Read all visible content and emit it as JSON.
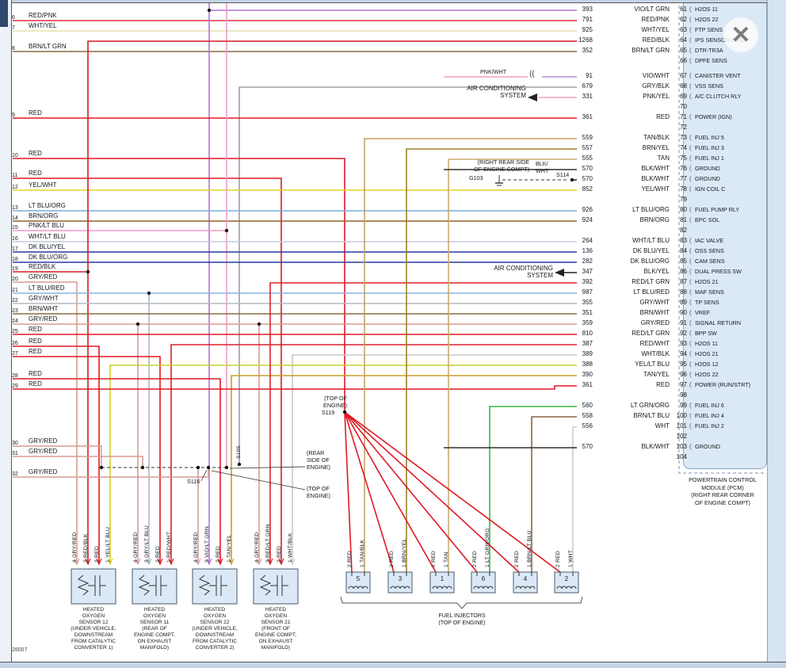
{
  "chrome": {
    "close": "✕",
    "drawing_number": "28007"
  },
  "pcm": {
    "bracket": "(",
    "splice_glyph": "((",
    "title_lines": [
      "POWERTRAIN CONTROL",
      "MODULE (PCM)",
      "(RIGHT REAR CORNER",
      "OF ENGINE COMPT)"
    ],
    "pins": [
      {
        "pin": "61",
        "num": "393",
        "color": "VIO/LT GRN",
        "label": "H2OS 11"
      },
      {
        "pin": "62",
        "num": "791",
        "color": "RED/PNK",
        "label": "H2OS 22"
      },
      {
        "pin": "63",
        "num": "925",
        "color": "WHT/YEL",
        "label": "FTP SENS"
      },
      {
        "pin": "64",
        "num": "1268",
        "color": "RED/BLK",
        "label": "IPS SENSOR INPUT"
      },
      {
        "pin": "65",
        "num": "352",
        "color": "BRN/LT GRN",
        "label": "DTR-TR3A"
      },
      {
        "pin": "66",
        "num": "",
        "color": "",
        "label": "DPFE SENS"
      },
      {
        "pin": "67",
        "num": "91",
        "color": "VIO/WHT",
        "label": "CANISTER VENT"
      },
      {
        "pin": "68",
        "num": "679",
        "color": "GRY/BLK",
        "label": "VSS SENS"
      },
      {
        "pin": "69",
        "num": "331",
        "color": "PNK/YEL",
        "label": "A/C CLUTCH RLY"
      },
      {
        "pin": "70",
        "num": "",
        "color": "",
        "label": ""
      },
      {
        "pin": "71",
        "num": "361",
        "color": "RED",
        "label": "POWER (IGN)"
      },
      {
        "pin": "72",
        "num": "",
        "color": "",
        "label": ""
      },
      {
        "pin": "73",
        "num": "559",
        "color": "TAN/BLK",
        "label": "FUEL INJ 5"
      },
      {
        "pin": "74",
        "num": "557",
        "color": "BRN/YEL",
        "label": "FUEL INJ 3"
      },
      {
        "pin": "75",
        "num": "555",
        "color": "TAN",
        "label": "FUEL INJ 1"
      },
      {
        "pin": "76",
        "num": "570",
        "color": "BLK/WHT",
        "label": "GROUND"
      },
      {
        "pin": "77",
        "num": "570",
        "color": "BLK/WHT",
        "label": "GROUND"
      },
      {
        "pin": "78",
        "num": "852",
        "color": "YEL/WHT",
        "label": "IGN COIL C"
      },
      {
        "pin": "79",
        "num": "",
        "color": "",
        "label": ""
      },
      {
        "pin": "80",
        "num": "926",
        "color": "LT BLU/ORG",
        "label": "FUEL PUMP RLY"
      },
      {
        "pin": "81",
        "num": "924",
        "color": "BRN/ORG",
        "label": "EPC SOL"
      },
      {
        "pin": "82",
        "num": "",
        "color": "",
        "label": ""
      },
      {
        "pin": "83",
        "num": "264",
        "color": "WHT/LT BLU",
        "label": "IAC VALVE"
      },
      {
        "pin": "84",
        "num": "136",
        "color": "DK BLU/YEL",
        "label": "OSS SENS"
      },
      {
        "pin": "85",
        "num": "282",
        "color": "DK BLU/ORG",
        "label": "CAM SENS"
      },
      {
        "pin": "86",
        "num": "347",
        "color": "BLK/YEL",
        "label": "DUAL PRESS SW"
      },
      {
        "pin": "87",
        "num": "392",
        "color": "RED/LT GRN",
        "label": "H2OS 21"
      },
      {
        "pin": "88",
        "num": "987",
        "color": "LT BLU/RED",
        "label": "MAF SENS"
      },
      {
        "pin": "89",
        "num": "355",
        "color": "GRY/WHT",
        "label": "TP SENS"
      },
      {
        "pin": "90",
        "num": "351",
        "color": "BRN/WHT",
        "label": "VREF"
      },
      {
        "pin": "91",
        "num": "359",
        "color": "GRY/RED",
        "label": "SIGNAL RETURN"
      },
      {
        "pin": "92",
        "num": "810",
        "color": "RED/LT GRN",
        "label": "BPP SW"
      },
      {
        "pin": "93",
        "num": "387",
        "color": "RED/WHT",
        "label": "H2OS 11"
      },
      {
        "pin": "94",
        "num": "389",
        "color": "WHT/BLK",
        "label": "H2OS 21"
      },
      {
        "pin": "95",
        "num": "388",
        "color": "YEL/LT BLU",
        "label": "H2OS 12"
      },
      {
        "pin": "96",
        "num": "390",
        "color": "TAN/YEL",
        "label": "H2OS 22"
      },
      {
        "pin": "97",
        "num": "361",
        "color": "RED",
        "label": "POWER (RUN/STRT)"
      },
      {
        "pin": "98",
        "num": "",
        "color": "",
        "label": ""
      },
      {
        "pin": "99",
        "num": "560",
        "color": "LT GRN/ORG",
        "label": "FUEL INJ 6"
      },
      {
        "pin": "100",
        "num": "558",
        "color": "BRN/LT BLU",
        "label": "FUEL INJ 4"
      },
      {
        "pin": "101",
        "num": "556",
        "color": "WHT",
        "label": "FUEL INJ 2"
      },
      {
        "pin": "102",
        "num": "",
        "color": "",
        "label": ""
      },
      {
        "pin": "103",
        "num": "570",
        "color": "BLK/WHT",
        "label": "GROUND"
      },
      {
        "pin": "104",
        "num": "",
        "color": "",
        "label": ""
      }
    ]
  },
  "left_connector": {
    "rows": [
      {
        "n": "6",
        "color": "RED/PNK"
      },
      {
        "n": "7",
        "color": "WHT/YEL"
      },
      {
        "n": "8",
        "color": "BRN/LT GRN"
      },
      {
        "n": "9",
        "color": "RED"
      },
      {
        "n": "10",
        "color": "RED"
      },
      {
        "n": "11",
        "color": "RED"
      },
      {
        "n": "12",
        "color": "YEL/WHT"
      },
      {
        "n": "13",
        "color": "LT BLU/ORG"
      },
      {
        "n": "14",
        "color": "BRN/ORG"
      },
      {
        "n": "15",
        "color": "PNK/LT BLU"
      },
      {
        "n": "16",
        "color": "WHT/LT BLU"
      },
      {
        "n": "17",
        "color": "DK BLU/YEL"
      },
      {
        "n": "18",
        "color": "DK BLU/ORG"
      },
      {
        "n": "19",
        "color": "RED/BLK"
      },
      {
        "n": "20",
        "color": "GRY/RED"
      },
      {
        "n": "21",
        "color": "LT BLU/RED"
      },
      {
        "n": "22",
        "color": "GRY/WHT"
      },
      {
        "n": "23",
        "color": "BRN/WHT"
      },
      {
        "n": "24",
        "color": "GRY/RED"
      },
      {
        "n": "25",
        "color": "RED"
      },
      {
        "n": "26",
        "color": "RED"
      },
      {
        "n": "27",
        "color": "RED"
      },
      {
        "n": "28",
        "color": "RED"
      },
      {
        "n": "29",
        "color": "RED"
      },
      {
        "n": "30",
        "color": "GRY/RED"
      },
      {
        "n": "31",
        "color": "GRY/RED"
      },
      {
        "n": "32",
        "color": "GRY/RED"
      }
    ]
  },
  "annotations": {
    "ac1": [
      "AIR CONDITIONING",
      "SYSTEM"
    ],
    "ac2": [
      "AIR CONDITIONING",
      "SYSTEM"
    ],
    "engine_compt": [
      "(RIGHT REAR SIDE",
      "OF ENGINE COMPT)"
    ],
    "g103": "G103",
    "blk_wht": [
      "BLK/",
      "WHT"
    ],
    "s114": "S114",
    "pnk_wht": "PNK/WHT",
    "s119_loc": [
      "(TOP OF",
      "ENGINE)"
    ],
    "s119": "S119",
    "rear_side": [
      "(REAR",
      "SIDE OF",
      "ENGINE)"
    ],
    "top_engine": [
      "(TOP OF",
      "ENGINE)"
    ],
    "s116": "S116",
    "s105": "S105"
  },
  "sensors": [
    {
      "pins": [
        "4 GRY/RED",
        "3 RED/BLK",
        "2 RED",
        "1 YEL/LT BLU"
      ],
      "caption": [
        "HEATED",
        "OXYGEN",
        "SENSOR 12",
        "(UNDER VEHICLE,",
        "DOWNSTREAM",
        "FROM CATALYTIC",
        "CONVERTER 1)"
      ]
    },
    {
      "pins": [
        "4 GRY/RED",
        "3 GRY/LT BLU",
        "2 RED",
        "1 RED/WHT"
      ],
      "caption": [
        "HEATED",
        "OXYGEN",
        "SENSOR 11",
        "(REAR OF",
        "ENGINE COMPT,",
        "ON EXHAUST",
        "MANIFOLD)"
      ]
    },
    {
      "pins": [
        "4 GRY/RED",
        "3 VIO/LT GRN",
        "2 RED",
        "1 TAN/YEL"
      ],
      "caption": [
        "HEATED",
        "OXYGEN",
        "SENSOR 22",
        "(UNDER VEHICLE,",
        "DOWNSTREAM",
        "FROM CATALYTIC",
        "CONVERTER 2)"
      ]
    },
    {
      "pins": [
        "4 GRY/RED",
        "3 RED/LT GRN",
        "2 RED",
        "1 WHT/BLK"
      ],
      "caption": [
        "HEATED",
        "OXYGEN",
        "SENSOR 21",
        "(FRONT OF",
        "ENGINE COMPT,",
        "ON EXHAUST",
        "MANIFOLD)"
      ]
    }
  ],
  "injectors": {
    "caption": [
      "FUEL INJECTORS",
      "(TOP OF ENGINE)"
    ],
    "items": [
      {
        "n": "5",
        "pins": [
          "2 RED",
          "1 TAN/BLK"
        ]
      },
      {
        "n": "3",
        "pins": [
          "2 RED",
          "1 BRN/YEL"
        ]
      },
      {
        "n": "1",
        "pins": [
          "2 RED",
          "1 TAN"
        ]
      },
      {
        "n": "6",
        "pins": [
          "2 RED",
          "1 LT GRN/ORG"
        ]
      },
      {
        "n": "4",
        "pins": [
          "2 RED",
          "1 BRN/LT BLU"
        ]
      },
      {
        "n": "2",
        "pins": [
          "2 RED",
          "1 WHT"
        ]
      }
    ]
  },
  "wire_colors": {
    "RED": "#e01826",
    "RED/PNK": "#e03040",
    "WHT/YEL": "#e6e0a8",
    "BRN/LT GRN": "#8c6a40",
    "VIO/LT GRN": "#b073d8",
    "RED/BLK": "#d41c24",
    "VIO/WHT": "#b98fd8",
    "GRY/BLK": "#9aa0a6",
    "PNK/YEL": "#f2a0bc",
    "PNK/WHT": "#f2a0bc",
    "PNK/LT BLU": "#ee9cc6",
    "YEL/WHT": "#e4d41e",
    "TAN/BLK": "#c4a268",
    "BRN/YEL": "#a08028",
    "TAN": "#ccaa70",
    "BLK/WHT": "#303030",
    "BLK/YEL": "#303030",
    "LT BLU/ORG": "#74aee0",
    "BRN/ORG": "#91602c",
    "WHT/LT BLU": "#c4ccd8",
    "DK BLU/YEL": "#2838a0",
    "DK BLU/ORG": "#283c9c",
    "GRY/RED": "#d89c94",
    "LT BLU/RED": "#8cb4e4",
    "GRY/LT BLU": "#aab8cc",
    "GRY/WHT": "#b4bac2",
    "BRN/WHT": "#8c6a40",
    "RED/LT GRN": "#dc2028",
    "RED/WHT": "#dc2028",
    "WHT/BLK": "#c8c8c8",
    "YEL/LT BLU": "#ccd028",
    "TAN/YEL": "#c8a024",
    "LT GRN/ORG": "#38b838",
    "BRN/LT BLU": "#8c6440",
    "WHT": "#cccccc"
  }
}
